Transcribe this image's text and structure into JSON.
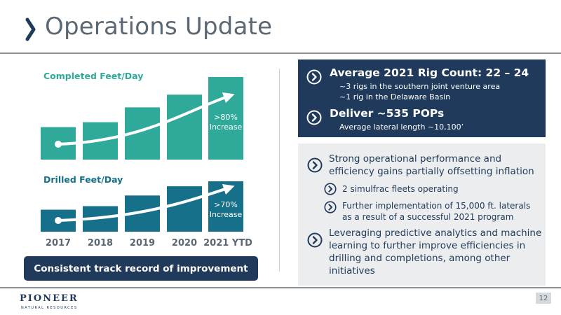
{
  "slide": {
    "title": "Operations Update",
    "page_number": "12",
    "logo": {
      "name": "PIONEER",
      "tagline": "NATURAL RESOURCES"
    }
  },
  "left_panel": {
    "summary_label": "Consistent track record of improvement"
  },
  "chart_data": [
    {
      "type": "bar",
      "title": "Completed Feet/Day",
      "categories": [
        "2017",
        "2018",
        "2019",
        "2020",
        "2021 YTD"
      ],
      "values": [
        46,
        53,
        74,
        92,
        117
      ],
      "annotation": [
        ">80%",
        "Increase"
      ],
      "color": "#2faa9a",
      "trend_arrow": true
    },
    {
      "type": "bar",
      "title": "Drilled Feet/Day",
      "categories": [
        "2017",
        "2018",
        "2019",
        "2020",
        "2021 YTD"
      ],
      "values": [
        31,
        36,
        51,
        64,
        71
      ],
      "annotation": [
        ">70%",
        "Increase"
      ],
      "color": "#17708a",
      "trend_arrow": true
    }
  ],
  "right_panel": {
    "highlights": [
      {
        "heading": "Average 2021 Rig Count: 22 – 24",
        "details": [
          "~3 rigs in the southern joint venture area",
          "~1 rig in the Delaware Basin"
        ]
      },
      {
        "heading": "Deliver ~535 POPs",
        "details": [
          "Average lateral length ~10,100’"
        ]
      }
    ],
    "bullets": [
      {
        "text_lines": [
          "Strong operational performance and",
          "efficiency gains partially offsetting inflation"
        ],
        "sub_bullets": [
          {
            "lines": [
              "2 simulfrac fleets operating"
            ]
          },
          {
            "lines": [
              "Further implementation of 15,000 ft. laterals",
              "as a result of a successful 2021 program"
            ]
          }
        ]
      },
      {
        "text_lines": [
          "Leveraging predictive analytics and machine",
          "learning to further improve efficiencies in",
          "drilling and completions, among other",
          "initiatives"
        ]
      }
    ],
    "colors": {
      "navy": "#1f3a5a",
      "teal": "#2faa9a",
      "dark_teal": "#17708a",
      "gray_panel": "#ecedee"
    },
    "icon": "chevron-circle-icon"
  }
}
